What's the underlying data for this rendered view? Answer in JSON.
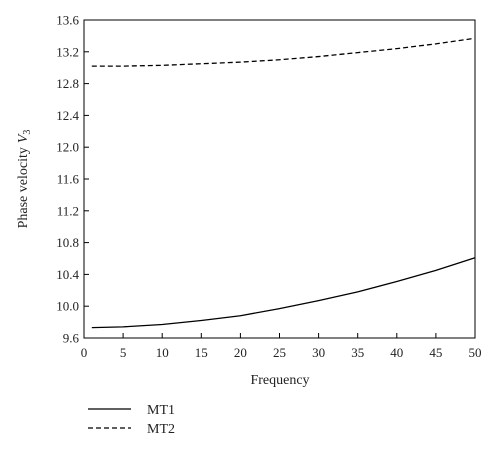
{
  "chart_data": {
    "type": "line",
    "xlabel": "Frequency",
    "ylabel": "Phase velocity",
    "ylabel_symbol": "V",
    "ylabel_subscript": "3",
    "xlim": [
      0,
      50
    ],
    "ylim": [
      9.6,
      13.6
    ],
    "xticks": [
      0,
      5,
      10,
      15,
      20,
      25,
      30,
      35,
      40,
      45,
      50
    ],
    "yticks": [
      9.6,
      10.0,
      10.4,
      10.8,
      11.2,
      11.6,
      12.0,
      12.4,
      12.8,
      13.2,
      13.6
    ],
    "ytick_labels": [
      "9.6",
      "10.0",
      "10.4",
      "10.8",
      "11.2",
      "11.6",
      "12.0",
      "12.4",
      "12.8",
      "13.2",
      "13.6"
    ],
    "grid": false,
    "legend_position": "bottom-left",
    "series": [
      {
        "name": "MT1",
        "style": "solid",
        "color": "#000000",
        "x": [
          1,
          5,
          10,
          15,
          20,
          25,
          30,
          35,
          40,
          45,
          50
        ],
        "y": [
          9.73,
          9.74,
          9.77,
          9.82,
          9.88,
          9.97,
          10.07,
          10.18,
          10.31,
          10.45,
          10.61
        ]
      },
      {
        "name": "MT2",
        "style": "dashed",
        "color": "#000000",
        "x": [
          1,
          5,
          10,
          15,
          20,
          25,
          30,
          35,
          40,
          45,
          50
        ],
        "y": [
          13.02,
          13.02,
          13.03,
          13.05,
          13.07,
          13.1,
          13.14,
          13.19,
          13.24,
          13.3,
          13.37
        ]
      }
    ]
  }
}
